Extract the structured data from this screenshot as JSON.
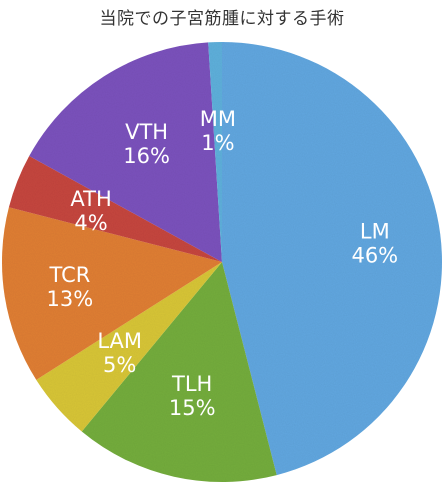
{
  "chart_data": {
    "type": "pie",
    "title": "当院での子宮筋腫に対する手術",
    "start_angle_deg": 0,
    "direction": "clockwise",
    "legend": "none",
    "slices": [
      {
        "label": "LM",
        "value": 46,
        "pct_label": "46%",
        "color": "#62a7e0"
      },
      {
        "label": "TLH",
        "value": 15,
        "pct_label": "15%",
        "color": "#74ad3e"
      },
      {
        "label": "LAM",
        "value": 5,
        "pct_label": "5%",
        "color": "#d8c639"
      },
      {
        "label": "TCR",
        "value": 13,
        "pct_label": "13%",
        "color": "#e07f34"
      },
      {
        "label": "ATH",
        "value": 4,
        "pct_label": "4%",
        "color": "#c6463f"
      },
      {
        "label": "VTH",
        "value": 16,
        "pct_label": "16%",
        "color": "#7c52bd"
      },
      {
        "label": "MM",
        "value": 1,
        "pct_label": "1%",
        "color": "#5fb0dc"
      }
    ]
  }
}
